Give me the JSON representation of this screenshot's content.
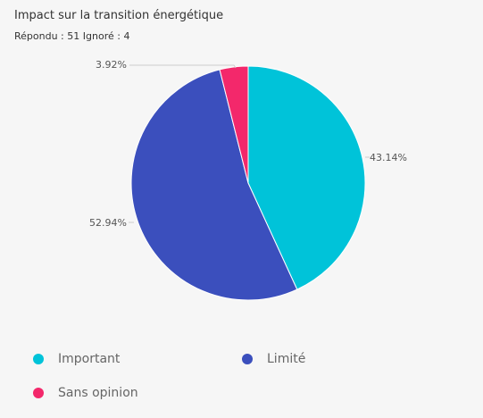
{
  "header": {
    "title": "Impact sur la transition énergétique",
    "answered_label": "Répondu :",
    "answered_count": "51",
    "ignored_label": "Ignoré :",
    "ignored_count": "4"
  },
  "colors": {
    "important": "#00c3d9",
    "limite": "#3b4fbd",
    "sans_opinion": "#f3286b",
    "background": "#f6f6f6",
    "leader": "#cccccc"
  },
  "legend": [
    {
      "label": "Important",
      "color": "#00c3d9"
    },
    {
      "label": "Limité",
      "color": "#3b4fbd"
    },
    {
      "label": "Sans opinion",
      "color": "#f3286b"
    }
  ],
  "chart_data": {
    "type": "pie",
    "categories": [
      "Important",
      "Limité",
      "Sans opinion"
    ],
    "values": [
      43.14,
      52.94,
      3.92
    ],
    "value_labels": [
      "43.14%",
      "52.94%",
      "3.92%"
    ],
    "colors": [
      "#00c3d9",
      "#3b4fbd",
      "#f3286b"
    ],
    "legend_position": "bottom"
  }
}
